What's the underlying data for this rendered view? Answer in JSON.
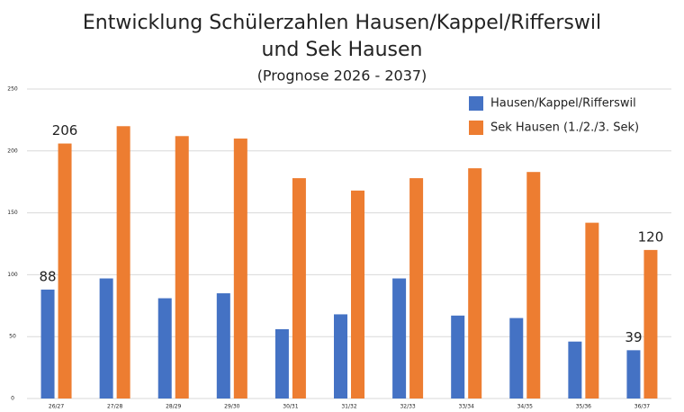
{
  "chart_data": {
    "type": "bar",
    "title": [
      "Entwicklung Schülerzahlen Hausen/Kappel/Rifferswil",
      "und Sek Hausen"
    ],
    "subtitle": "(Prognose 2026 - 2037)",
    "categories": [
      "26/27",
      "27/28",
      "28/29",
      "29/30",
      "30/31",
      "31/32",
      "32/33",
      "33/34",
      "34/35",
      "35/36",
      "36/37"
    ],
    "series": [
      {
        "name": "Hausen/Kappel/Rifferswil",
        "color": "#4472c4",
        "values": [
          88,
          97,
          81,
          85,
          56,
          68,
          97,
          67,
          65,
          46,
          39
        ]
      },
      {
        "name": "Sek Hausen (1./2./3. Sek)",
        "color": "#ed7d31",
        "values": [
          206,
          220,
          212,
          210,
          178,
          168,
          178,
          186,
          183,
          142,
          120
        ]
      }
    ],
    "data_label_indices": [
      0,
      10
    ],
    "ylim": [
      0,
      250
    ],
    "yticks": [
      0,
      50,
      100,
      150,
      200,
      250
    ],
    "grid": true,
    "legend": "top-right"
  }
}
